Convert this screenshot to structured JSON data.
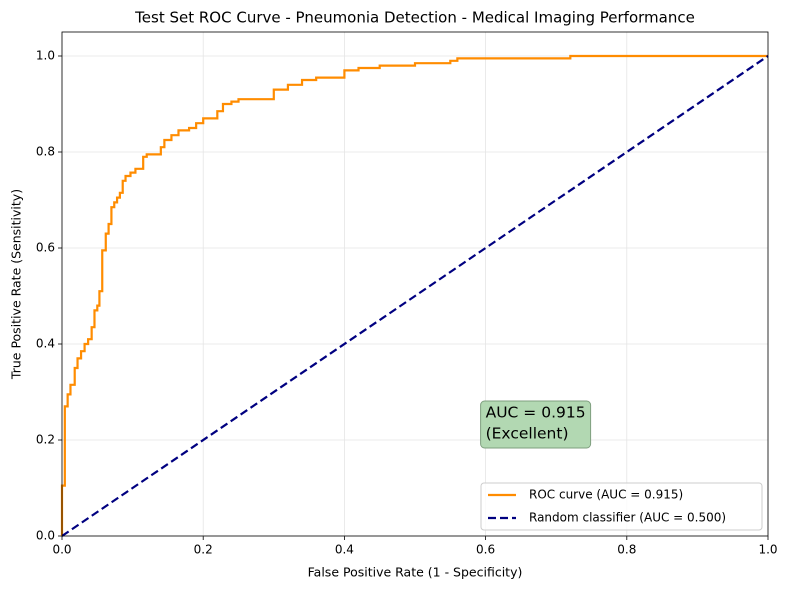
{
  "chart_data": {
    "type": "line",
    "title": "Test Set ROC Curve - Pneumonia Detection - Medical Imaging Performance",
    "x_label": "False Positive Rate (1 - Specificity)",
    "y_label": "True Positive Rate (Sensitivity)",
    "xlim": [
      0,
      1
    ],
    "ylim": [
      0,
      1.05
    ],
    "xticks": [
      {
        "value": 0,
        "label": "0.0"
      },
      0.2,
      0.4,
      0.6,
      0.8,
      {
        "value": 1,
        "label": "1.0"
      }
    ],
    "yticks": [
      {
        "value": 0,
        "label": "0.0"
      },
      0.2,
      0.4,
      0.6,
      0.8,
      {
        "value": 1,
        "label": "1.0"
      }
    ],
    "grid": true,
    "legend_position": "lower right",
    "annotation": [
      "AUC = 0.915",
      "(Excellent)"
    ],
    "annotation_x": 0.6,
    "annotation_y": 0.2,
    "series": [
      {
        "name": "ROC curve (AUC = 0.915)",
        "color": "#ff8c00",
        "linestyle": "solid",
        "x": [
          0,
          0,
          0.004,
          0.004,
          0.008,
          0.008,
          0.012,
          0.012,
          0.018,
          0.018,
          0.022,
          0.022,
          0.027,
          0.027,
          0.032,
          0.032,
          0.037,
          0.037,
          0.042,
          0.042,
          0.046,
          0.046,
          0.05,
          0.05,
          0.053,
          0.053,
          0.057,
          0.057,
          0.062,
          0.062,
          0.066,
          0.066,
          0.07,
          0.07,
          0.074,
          0.074,
          0.078,
          0.078,
          0.082,
          0.082,
          0.086,
          0.086,
          0.09,
          0.09,
          0.097,
          0.097,
          0.104,
          0.104,
          0.115,
          0.115,
          0.12,
          0.12,
          0.14,
          0.14,
          0.145,
          0.145,
          0.155,
          0.155,
          0.165,
          0.165,
          0.18,
          0.18,
          0.19,
          0.19,
          0.2,
          0.2,
          0.22,
          0.22,
          0.228,
          0.228,
          0.24,
          0.24,
          0.25,
          0.25,
          0.3,
          0.3,
          0.32,
          0.32,
          0.34,
          0.34,
          0.36,
          0.36,
          0.4,
          0.4,
          0.42,
          0.42,
          0.45,
          0.45,
          0.5,
          0.5,
          0.55,
          0.55,
          0.56,
          0.56,
          0.72,
          0.72,
          1
        ],
        "values": [
          0,
          0.105,
          0.105,
          0.27,
          0.27,
          0.295,
          0.295,
          0.315,
          0.315,
          0.35,
          0.35,
          0.37,
          0.37,
          0.385,
          0.385,
          0.4,
          0.4,
          0.41,
          0.41,
          0.435,
          0.435,
          0.47,
          0.47,
          0.48,
          0.48,
          0.51,
          0.51,
          0.595,
          0.595,
          0.63,
          0.63,
          0.65,
          0.65,
          0.685,
          0.685,
          0.695,
          0.695,
          0.705,
          0.705,
          0.715,
          0.715,
          0.74,
          0.74,
          0.75,
          0.75,
          0.757,
          0.757,
          0.765,
          0.765,
          0.79,
          0.79,
          0.795,
          0.795,
          0.81,
          0.81,
          0.825,
          0.825,
          0.835,
          0.835,
          0.845,
          0.845,
          0.85,
          0.85,
          0.86,
          0.86,
          0.87,
          0.87,
          0.885,
          0.885,
          0.9,
          0.9,
          0.905,
          0.905,
          0.91,
          0.91,
          0.93,
          0.93,
          0.94,
          0.94,
          0.95,
          0.95,
          0.955,
          0.955,
          0.97,
          0.97,
          0.975,
          0.975,
          0.98,
          0.98,
          0.985,
          0.985,
          0.99,
          0.99,
          0.995,
          0.995,
          1,
          1
        ]
      },
      {
        "name": "Random classifier (AUC = 0.500)",
        "color": "#000080",
        "linestyle": "dashed",
        "x": [
          0,
          1
        ],
        "values": [
          0,
          1
        ]
      }
    ]
  }
}
